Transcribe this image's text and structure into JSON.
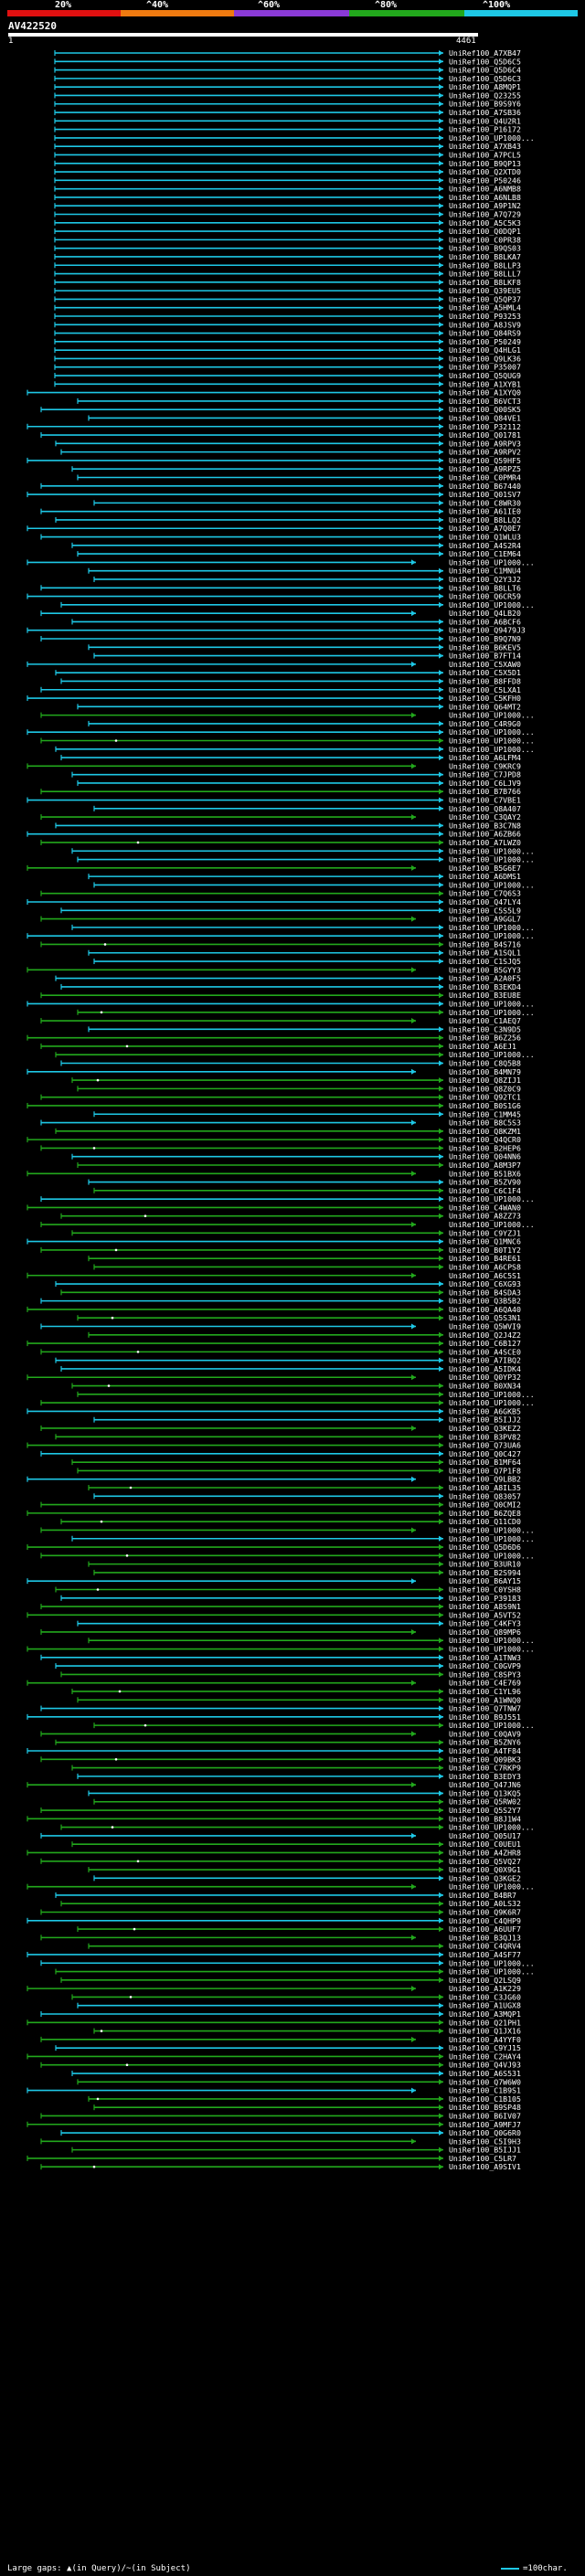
{
  "legend": {
    "labels": [
      "20%",
      "^40%",
      "^60%",
      "^80%",
      "^100%"
    ],
    "colors": [
      "#e01010",
      "#ef7a10",
      "#8a3ad6",
      "#22a81c",
      "#1ec8e6"
    ]
  },
  "query": {
    "title": "AV422520",
    "scale_start": "1",
    "scale_end": "4461"
  },
  "hits": [
    "UniRef100_A7XB47",
    "UniRef100_Q5D6C5",
    "UniRef100_Q5D6C4",
    "UniRef100_Q5D6C3",
    "UniRef100_A8MQP1",
    "UniRef100_Q23255",
    "UniRef100_B9S9Y6",
    "UniRef100_A7SB36",
    "UniRef100_Q4U2R1",
    "UniRef100_P16172",
    "UniRef100_UP1000...",
    "UniRef100_A7XB43",
    "UniRef100_A7PCL5",
    "UniRef100_B9QP13",
    "UniRef100_Q2XTD0",
    "UniRef100_P50246",
    "UniRef100_A6NMB8",
    "UniRef100_A6NLB8",
    "UniRef100_A9P1N2",
    "UniRef100_A7Q729",
    "UniRef100_A5C5K3",
    "UniRef100_Q0DQP1",
    "UniRef100_C0PR38",
    "UniRef100_B9QS03",
    "UniRef100_B8LKA7",
    "UniRef100_B8LLP3",
    "UniRef100_B8LLL7",
    "UniRef100_B8LKF8",
    "UniRef100_Q39EU5",
    "UniRef100_Q5QP37",
    "UniRef100_A5HML4",
    "UniRef100_P93253",
    "UniRef100_A8JSV9",
    "UniRef100_Q84RS9",
    "UniRef100_P50249",
    "UniRef100_Q4HLG1",
    "UniRef100_Q9LK36",
    "UniRef100_P35007",
    "UniRef100_Q5QUG9",
    "UniRef100_A1XYB1",
    "UniRef100_A1XYQ0",
    "UniRef100_B6VCT3",
    "UniRef100_Q00SK5",
    "UniRef100_Q84VE1",
    "UniRef100_P32112",
    "UniRef100_Q01781",
    "UniRef100_A9RPV3",
    "UniRef100_A9RPV2",
    "UniRef100_Q59HF5",
    "UniRef100_A9RPZ5",
    "UniRef100_C0PMR4",
    "UniRef100_B67440",
    "UniRef100_Q01SV7",
    "UniRef100_C8WR30",
    "UniRef100_A61IE0",
    "UniRef100_B8LLQ2",
    "UniRef100_A7Q0E7",
    "UniRef100_Q1WLU3",
    "UniRef100_A4S2R4",
    "UniRef100_C1EM64",
    "UniRef100_UP1000...",
    "UniRef100_C1MNU4",
    "UniRef100_Q2Y3J2",
    "UniRef100_B8LLT6",
    "UniRef100_Q6CR59",
    "UniRef100_UP1000...",
    "UniRef100_Q4LB20",
    "UniRef100_A6BCF6",
    "UniRef100_Q9479J3",
    "UniRef100_B9Q7N9",
    "UniRef100_B6KEV5",
    "UniRef100_B7FT14",
    "UniRef100_C5XAW0",
    "UniRef100_C5X5D1",
    "UniRef100_B8FFD8",
    "UniRef100_C5LXA1",
    "UniRef100_C5KFH0",
    "UniRef100_Q64MT2",
    "UniRef100_UP1000...",
    "UniRef100_C4R9G0",
    "UniRef100_UP1000...",
    "UniRef100_UP1000...",
    "UniRef100_UP1000...",
    "UniRef100_A6LFM4",
    "UniRef100_C9KRC9",
    "UniRef100_C7JPD8",
    "UniRef100_C6LJV9",
    "UniRef100_B7B766",
    "UniRef100_C7VBE1",
    "UniRef100_Q8A407",
    "UniRef100_C3QAY2",
    "UniRef100_B3C7N8",
    "UniRef100_A6ZB66",
    "UniRef100_A7LWZ0",
    "UniRef100_UP1000...",
    "UniRef100_UP1000...",
    "UniRef100_B5G6E7",
    "UniRef100_A6DMS1",
    "UniRef100_UP1000...",
    "UniRef100_C7Q6S3",
    "UniRef100_Q47LY4",
    "UniRef100_C5S5L9",
    "UniRef100_A9GGL7",
    "UniRef100_UP1000...",
    "UniRef100_UP1000...",
    "UniRef100_B4S716",
    "UniRef100_A1SQL1",
    "UniRef100_C1SJQ5",
    "UniRef100_B5GYY3",
    "UniRef100_A2A0F5",
    "UniRef100_B3EKD4",
    "UniRef100_B3EU8E",
    "UniRef100_UP1000...",
    "UniRef100_UP1000...",
    "UniRef100_C1AEQ7",
    "UniRef100_C3N9D5",
    "UniRef100_B6Z256",
    "UniRef100_A6EJ1",
    "UniRef100_UP1000...",
    "UniRef100_C8Q5B8",
    "UniRef100_B4MN79",
    "UniRef100_Q8ZIJ1",
    "UniRef100_Q8Z0C9",
    "UniRef100_Q92TC1",
    "UniRef100_B0S1G6",
    "UniRef100_C1MM45",
    "UniRef100_B8C5S3",
    "UniRef100_Q8KZM1",
    "UniRef100_Q4QCR0",
    "UniRef100_B2HEP6",
    "UniRef100_Q04NN6",
    "UniRef100_A8M3P7",
    "UniRef100_B51BX6",
    "UniRef100_B5ZV90",
    "UniRef100_C6C1F4",
    "UniRef100_UP1000...",
    "UniRef100_C4WAN0",
    "UniRef100_A8ZZ73",
    "UniRef100_UP1000...",
    "UniRef100_C9YZJ1",
    "UniRef100_Q1MNC6",
    "UniRef100_B0T1Y2",
    "UniRef100_B4RE61",
    "UniRef100_A6CPS8",
    "UniRef100_A6C5S1",
    "UniRef100_C6XG93",
    "UniRef100_B4SDA3",
    "UniRef100_Q3B5B2",
    "UniRef100_A6QA40",
    "UniRef100_Q5S3N1",
    "UniRef100_Q5WVI9",
    "UniRef100_Q2J4Z2",
    "UniRef100_C6B127",
    "UniRef100_A4SCE0",
    "UniRef100_A7IBQ2",
    "UniRef100_A5IDK4",
    "UniRef100_Q0YP32",
    "UniRef100_B0XN34",
    "UniRef100_UP1000...",
    "UniRef100_UP1000...",
    "UniRef100_A6GKB5",
    "UniRef100_B5IJJ2",
    "UniRef100_Q3KEZ2",
    "UniRef100_B3PV82",
    "UniRef100_Q73UA6",
    "UniRef100_Q0C427",
    "UniRef100_B1MF64",
    "UniRef100_Q7P1F8",
    "UniRef100_Q9LBB2",
    "UniRef100_A8IL35",
    "UniRef100_Q83057",
    "UniRef100_Q0CMI2",
    "UniRef100_B6ZQE8",
    "UniRef100_Q11CD0",
    "UniRef100_UP1000...",
    "UniRef100_UP1000...",
    "UniRef100_Q5D6D6",
    "UniRef100_UP1000...",
    "UniRef100_B3UR10",
    "UniRef100_B2S994",
    "UniRef100_B6AY15",
    "UniRef100_C0YSH8",
    "UniRef100_P39183",
    "UniRef100_A8S9N1",
    "UniRef100_A5VT52",
    "UniRef100_C4KFY3",
    "UniRef100_Q89MP6",
    "UniRef100_UP1000...",
    "UniRef100_UP1000...",
    "UniRef100_A1TNW3",
    "UniRef100_C0GVP9",
    "UniRef100_C8SPY3",
    "UniRef100_C4E769",
    "UniRef100_C1YL96",
    "UniRef100_A1WNQ0",
    "UniRef100_Q7TNW7",
    "UniRef100_B9J551",
    "UniRef100_UP1000...",
    "UniRef100_C0QAV9",
    "UniRef100_B5ZNY6",
    "UniRef100_A4TF84",
    "UniRef100_Q09BK3",
    "UniRef100_C7RKP9",
    "UniRef100_B3EDY3",
    "UniRef100_Q47JN6",
    "UniRef100_Q13KQ5",
    "UniRef100_Q5RW02",
    "UniRef100_Q5S2Y7",
    "UniRef100_B8J1W4",
    "UniRef100_UP1000...",
    "UniRef100_Q05U17",
    "UniRef100_C0UEU1",
    "UniRef100_A4ZHR8",
    "UniRef100_Q5VQ27",
    "UniRef100_Q0X9G1",
    "UniRef100_Q3KGE2",
    "UniRef100_UP1000...",
    "UniRef100_B4BR7",
    "UniRef100_A0LS32",
    "UniRef100_Q9K6R7",
    "UniRef100_C4QHP9",
    "UniRef100_A6UUF7",
    "UniRef100_B3QJ13",
    "UniRef100_C4QRV4",
    "UniRef100_A4SF77",
    "UniRef100_UP1000...",
    "UniRef100_UP1000...",
    "UniRef100_Q2LSQ9",
    "UniRef100_A1K229",
    "UniRef100_C3JG60",
    "UniRef100_A1UGX8",
    "UniRef100_A3MQP1",
    "UniRef100_Q21PH1",
    "UniRef100_Q1JX16",
    "UniRef100_A4YYF0",
    "UniRef100_C9YJ15",
    "UniRef100_C2HAY4",
    "UniRef100_Q4VJ93",
    "UniRef100_A6S531",
    "UniRef100_Q7W6W0",
    "UniRef100_C1B9S1",
    "UniRef100_C1B105",
    "UniRef100_B9SP48",
    "UniRef100_B6IV07",
    "UniRef100_A9MFJ7",
    "UniRef100_Q0G6R0",
    "UniRef100_C5I9H3",
    "UniRef100_B5IJJ1",
    "UniRef100_C5LR7",
    "UniRef100_A9SIV1"
  ],
  "footer": {
    "gap_legend": "Large gaps: ▲(in Query)/~(in Subject)",
    "scale_legend": "=100char."
  }
}
